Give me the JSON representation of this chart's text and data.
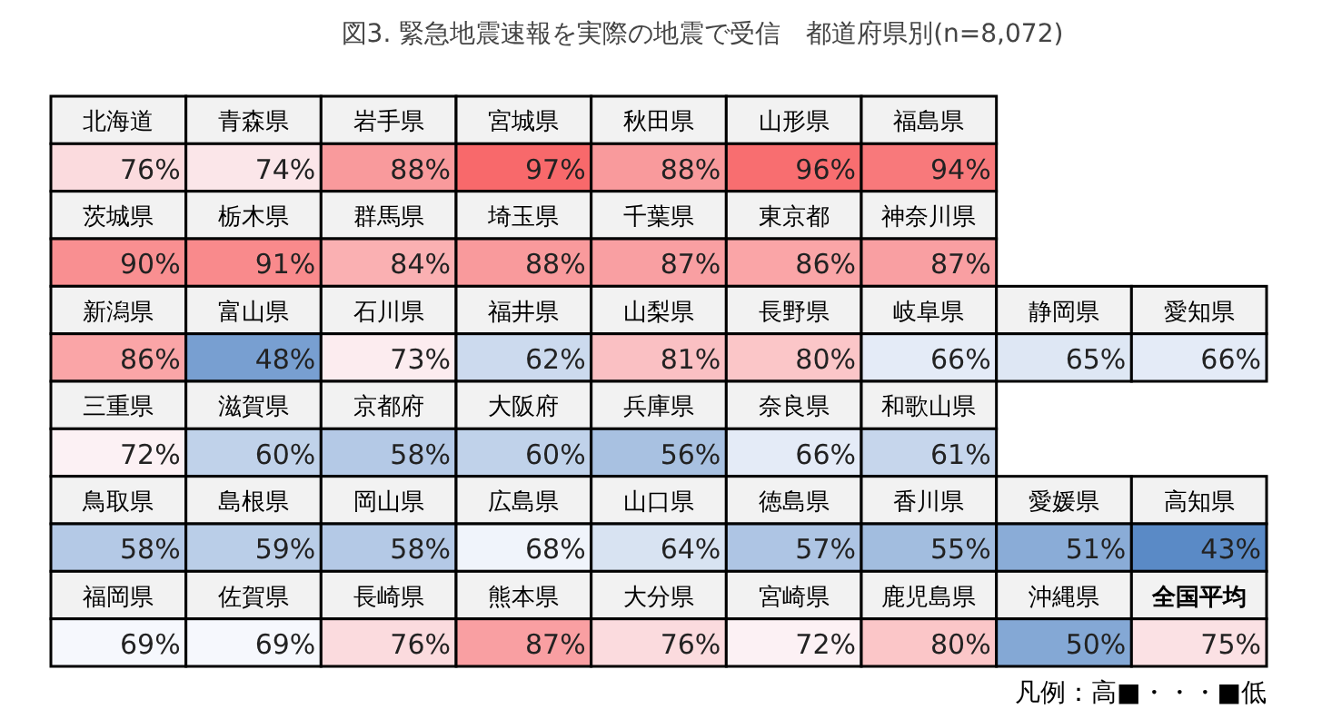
{
  "chart_data": {
    "type": "other",
    "title": "図3. 緊急地震速報を実際の地震で受信　都道府県別(n=8,072)",
    "categories": [
      "北海道",
      "青森県",
      "岩手県",
      "宮城県",
      "秋田県",
      "山形県",
      "福島県",
      "茨城県",
      "栃木県",
      "群馬県",
      "埼玉県",
      "千葉県",
      "東京都",
      "神奈川県",
      "新潟県",
      "富山県",
      "石川県",
      "福井県",
      "山梨県",
      "長野県",
      "岐阜県",
      "静岡県",
      "愛知県",
      "三重県",
      "滋賀県",
      "京都府",
      "大阪府",
      "兵庫県",
      "奈良県",
      "和歌山県",
      "鳥取県",
      "島根県",
      "岡山県",
      "広島県",
      "山口県",
      "徳島県",
      "香川県",
      "愛媛県",
      "高知県",
      "福岡県",
      "佐賀県",
      "長崎県",
      "熊本県",
      "大分県",
      "宮崎県",
      "鹿児島県",
      "沖縄県",
      "全国平均"
    ],
    "values": [
      76,
      74,
      88,
      97,
      88,
      96,
      94,
      90,
      91,
      84,
      88,
      87,
      86,
      87,
      86,
      48,
      73,
      62,
      81,
      80,
      66,
      65,
      66,
      72,
      60,
      58,
      60,
      56,
      66,
      61,
      58,
      59,
      58,
      68,
      64,
      57,
      55,
      51,
      43,
      69,
      69,
      76,
      87,
      76,
      72,
      80,
      50,
      75
    ],
    "value_labels": [
      "76%",
      "74%",
      "88%",
      "97%",
      "88%",
      "96%",
      "94%",
      "90%",
      "91%",
      "84%",
      "88%",
      "87%",
      "86%",
      "87%",
      "86%",
      "48%",
      "73%",
      "62%",
      "81%",
      "80%",
      "66%",
      "65%",
      "66%",
      "72%",
      "60%",
      "58%",
      "60%",
      "56%",
      "66%",
      "61%",
      "58%",
      "59%",
      "58%",
      "68%",
      "64%",
      "57%",
      "55%",
      "51%",
      "43%",
      "69%",
      "69%",
      "76%",
      "87%",
      "76%",
      "72%",
      "80%",
      "50%",
      "75%"
    ],
    "annotations": [
      "凡例：高■・・・■低"
    ]
  }
}
